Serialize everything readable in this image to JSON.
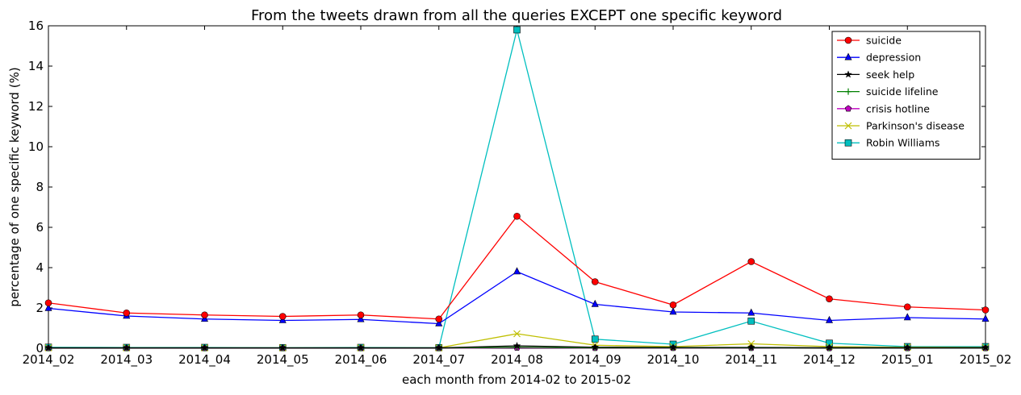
{
  "chart_data": {
    "type": "line",
    "title": "From the tweets drawn from all the queries EXCEPT one specific keyword",
    "xlabel": "each month from 2014-02 to 2015-02",
    "ylabel": "percentage of one specific keyword (%)",
    "categories": [
      "2014_02",
      "2014_03",
      "2014_04",
      "2014_05",
      "2014_06",
      "2014_07",
      "2014_08",
      "2014_09",
      "2014_10",
      "2014_11",
      "2014_12",
      "2015_01",
      "2015_02"
    ],
    "ylim": [
      0,
      16
    ],
    "yticks": [
      "0",
      "2",
      "4",
      "6",
      "8",
      "10",
      "12",
      "14",
      "16"
    ],
    "grid": false,
    "legend_position": "top-right",
    "series": [
      {
        "name": "suicide",
        "color": "#ff0000",
        "marker": "circle",
        "values": [
          2.25,
          1.75,
          1.65,
          1.58,
          1.65,
          1.45,
          6.55,
          3.3,
          2.15,
          4.3,
          2.45,
          2.05,
          1.9
        ]
      },
      {
        "name": "depression",
        "color": "#0000ff",
        "marker": "triangle",
        "values": [
          1.98,
          1.6,
          1.45,
          1.38,
          1.43,
          1.22,
          3.8,
          2.18,
          1.8,
          1.75,
          1.38,
          1.52,
          1.45
        ]
      },
      {
        "name": "seek help",
        "color": "#000000",
        "marker": "star",
        "values": [
          0.02,
          0.02,
          0.02,
          0.02,
          0.02,
          0.02,
          0.12,
          0.05,
          0.04,
          0.04,
          0.03,
          0.03,
          0.03
        ]
      },
      {
        "name": "suicide lifeline",
        "color": "#008000",
        "marker": "plus",
        "values": [
          0.01,
          0.01,
          0.01,
          0.01,
          0.01,
          0.01,
          0.05,
          0.02,
          0.02,
          0.02,
          0.01,
          0.01,
          0.01
        ]
      },
      {
        "name": "crisis hotline",
        "color": "#bf00bf",
        "marker": "pentagon",
        "values": [
          0.0,
          0.0,
          0.0,
          0.0,
          0.0,
          0.0,
          0.02,
          0.01,
          0.01,
          0.01,
          0.0,
          0.0,
          0.0
        ]
      },
      {
        "name": "Parkinson's disease",
        "color": "#bfbf00",
        "marker": "x",
        "values": [
          0.02,
          0.02,
          0.02,
          0.02,
          0.02,
          0.02,
          0.72,
          0.15,
          0.08,
          0.22,
          0.08,
          0.05,
          0.04
        ]
      },
      {
        "name": "Robin Williams",
        "color": "#00bfbf",
        "marker": "square",
        "values": [
          0.05,
          0.04,
          0.04,
          0.03,
          0.04,
          0.03,
          15.8,
          0.45,
          0.2,
          1.35,
          0.25,
          0.08,
          0.08
        ]
      }
    ]
  }
}
